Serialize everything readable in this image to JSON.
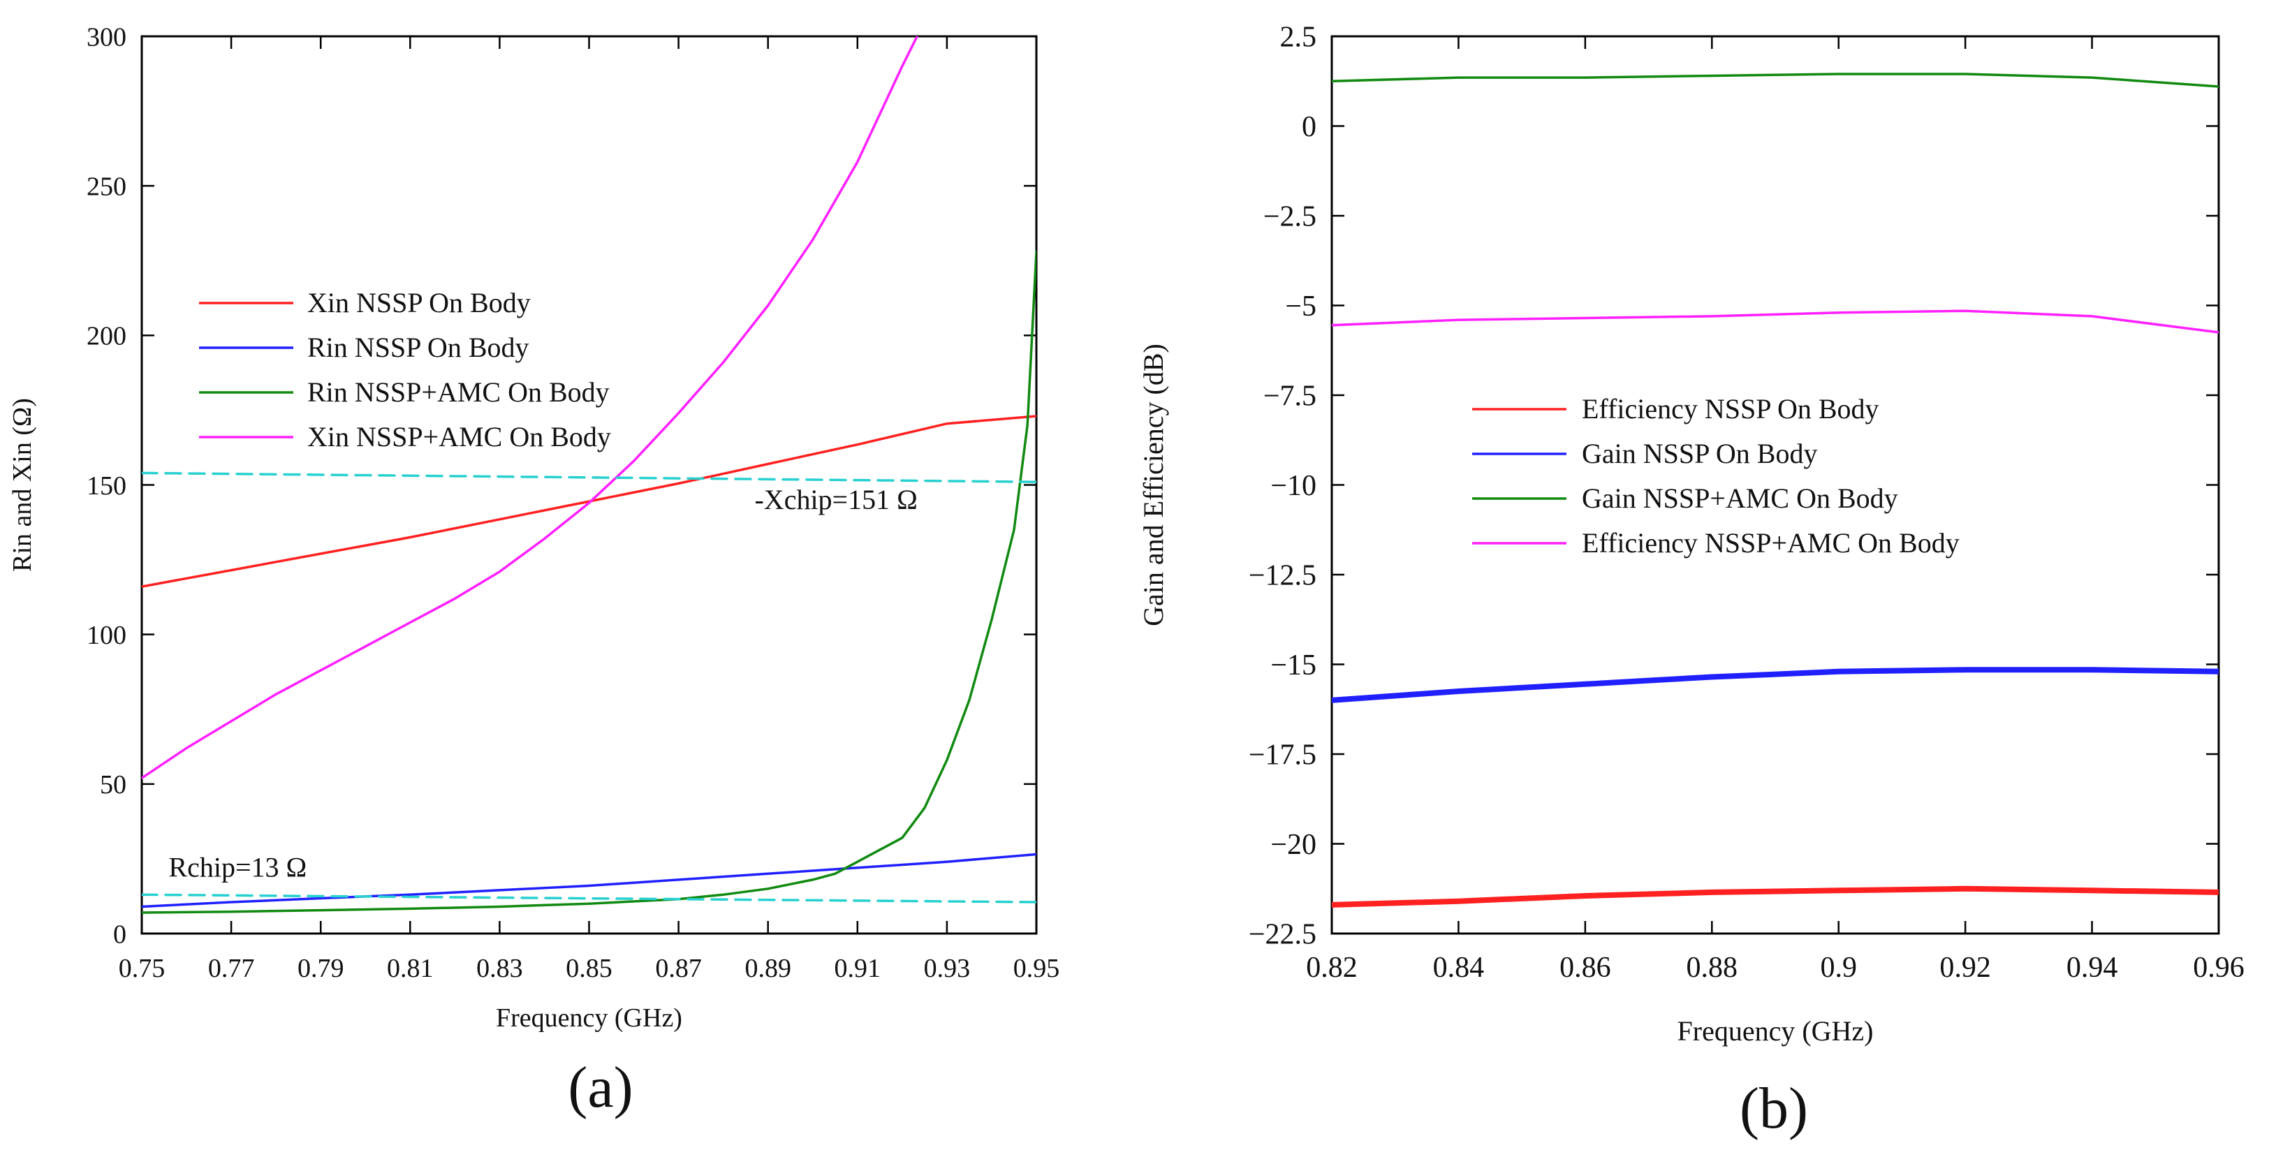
{
  "chart_data": [
    {
      "type": "line",
      "caption": "(a)",
      "xlabel": "Frequency (GHz)",
      "ylabel": "Rin and Xin (Ω)",
      "xlim": [
        0.75,
        0.95
      ],
      "ylim": [
        0,
        300
      ],
      "x_ticks": [
        0.75,
        0.77,
        0.79,
        0.81,
        0.83,
        0.85,
        0.87,
        0.89,
        0.91,
        0.93,
        0.95
      ],
      "x_tick_labels": [
        "0.75",
        "0.77",
        "0.79",
        "0.81",
        "0.83",
        "0.85",
        "0.87",
        "0.89",
        "0.91",
        "0.93",
        "0.95"
      ],
      "y_ticks": [
        0,
        50,
        100,
        150,
        200,
        250,
        300
      ],
      "y_tick_labels": [
        "0",
        "50",
        "100",
        "150",
        "200",
        "250",
        "300"
      ],
      "grid": false,
      "legend_position": "center-left",
      "series": [
        {
          "name": "Xin NSSP On Body",
          "color": "#ff2020",
          "style": "solid",
          "x": [
            0.75,
            0.77,
            0.79,
            0.81,
            0.83,
            0.85,
            0.87,
            0.89,
            0.91,
            0.93,
            0.95
          ],
          "y": [
            116,
            121.5,
            127,
            132.5,
            138.5,
            144.5,
            150.5,
            157,
            163.5,
            170.5,
            173
          ]
        },
        {
          "name": "Rin NSSP On Body",
          "color": "#2020ff",
          "style": "solid",
          "x": [
            0.75,
            0.77,
            0.79,
            0.81,
            0.83,
            0.85,
            0.87,
            0.89,
            0.91,
            0.93,
            0.95
          ],
          "y": [
            9,
            10.5,
            11.8,
            13,
            14.5,
            16,
            18,
            20,
            22,
            24,
            26.5
          ]
        },
        {
          "name": "Rin NSSP+AMC On Body",
          "color": "#108a10",
          "style": "solid",
          "x": [
            0.75,
            0.77,
            0.79,
            0.81,
            0.83,
            0.85,
            0.87,
            0.88,
            0.89,
            0.9,
            0.905,
            0.91,
            0.915,
            0.92,
            0.925,
            0.93,
            0.935,
            0.94,
            0.945,
            0.948,
            0.95
          ],
          "y": [
            7,
            7.3,
            7.8,
            8.3,
            9,
            10,
            11.5,
            13,
            15,
            18,
            20,
            24,
            28,
            32,
            42,
            58,
            78,
            105,
            135,
            170,
            228
          ]
        },
        {
          "name": "Xin NSSP+AMC On Body",
          "color": "#ff20ff",
          "style": "solid",
          "x": [
            0.75,
            0.76,
            0.77,
            0.78,
            0.79,
            0.8,
            0.81,
            0.82,
            0.83,
            0.84,
            0.85,
            0.86,
            0.87,
            0.88,
            0.89,
            0.9,
            0.91,
            0.92,
            0.924
          ],
          "y": [
            52,
            62,
            71,
            80,
            88,
            96,
            104,
            112,
            121,
            132,
            144,
            158,
            174,
            191,
            210,
            232,
            258,
            290,
            302
          ]
        },
        {
          "name": "-Xchip",
          "color": "#28d0d0",
          "style": "dashed",
          "x": [
            0.75,
            0.95
          ],
          "y": [
            154,
            151
          ]
        },
        {
          "name": "Rchip",
          "color": "#28d0d0",
          "style": "dashed",
          "x": [
            0.75,
            0.95
          ],
          "y": [
            13,
            10.5
          ]
        }
      ],
      "legend": [
        "Xin NSSP On Body",
        "Rin NSSP On Body",
        "Rin NSSP+AMC On Body",
        "Xin NSSP+AMC On Body"
      ],
      "annotations": [
        {
          "text": "-Xchip=151 Ω",
          "x": 0.887,
          "y": 142
        },
        {
          "text": "Rchip=13 Ω",
          "x": 0.756,
          "y": 19
        }
      ]
    },
    {
      "type": "line",
      "caption": "(b)",
      "xlabel": "Frequency (GHz)",
      "ylabel": "Gain and Efficiency (dB)",
      "xlim": [
        0.82,
        0.96
      ],
      "ylim": [
        -22.5,
        2.5
      ],
      "x_ticks": [
        0.82,
        0.84,
        0.86,
        0.88,
        0.9,
        0.92,
        0.94,
        0.96
      ],
      "x_tick_labels": [
        "0.82",
        "0.84",
        "0.86",
        "0.88",
        "0.9",
        "0.92",
        "0.94",
        "0.96"
      ],
      "y_ticks": [
        2.5,
        0,
        -2.5,
        -5,
        -7.5,
        -10,
        -12.5,
        -15,
        -17.5,
        -20,
        -22.5
      ],
      "y_tick_labels": [
        "2.5",
        "0",
        "−2.5",
        "−5",
        "−7.5",
        "−10",
        "−12.5",
        "−15",
        "−17.5",
        "−20",
        "−22.5"
      ],
      "grid": false,
      "legend_position": "center",
      "series": [
        {
          "name": "Efficiency NSSP On Body",
          "color": "#ff2020",
          "style": "solid-thick",
          "x": [
            0.82,
            0.84,
            0.86,
            0.88,
            0.9,
            0.92,
            0.94,
            0.96
          ],
          "y": [
            -21.7,
            -21.6,
            -21.45,
            -21.35,
            -21.3,
            -21.25,
            -21.3,
            -21.35
          ]
        },
        {
          "name": "Gain NSSP On Body",
          "color": "#2020ff",
          "style": "solid-thick",
          "x": [
            0.82,
            0.84,
            0.86,
            0.88,
            0.9,
            0.92,
            0.94,
            0.96
          ],
          "y": [
            -16.0,
            -15.75,
            -15.55,
            -15.35,
            -15.2,
            -15.15,
            -15.15,
            -15.2
          ]
        },
        {
          "name": "Gain NSSP+AMC On Body",
          "color": "#108a10",
          "style": "solid",
          "x": [
            0.82,
            0.84,
            0.86,
            0.88,
            0.9,
            0.92,
            0.94,
            0.96
          ],
          "y": [
            1.25,
            1.35,
            1.35,
            1.4,
            1.45,
            1.45,
            1.35,
            1.1
          ]
        },
        {
          "name": "Efficiency NSSP+AMC On Body",
          "color": "#ff20ff",
          "style": "solid",
          "x": [
            0.82,
            0.84,
            0.86,
            0.88,
            0.9,
            0.92,
            0.94,
            0.96
          ],
          "y": [
            -5.55,
            -5.4,
            -5.35,
            -5.3,
            -5.2,
            -5.15,
            -5.3,
            -5.75
          ]
        }
      ],
      "legend": [
        "Efficiency NSSP On Body",
        "Gain NSSP On Body",
        "Gain NSSP+AMC On Body",
        "Efficiency NSSP+AMC On Body"
      ],
      "annotations": []
    }
  ]
}
